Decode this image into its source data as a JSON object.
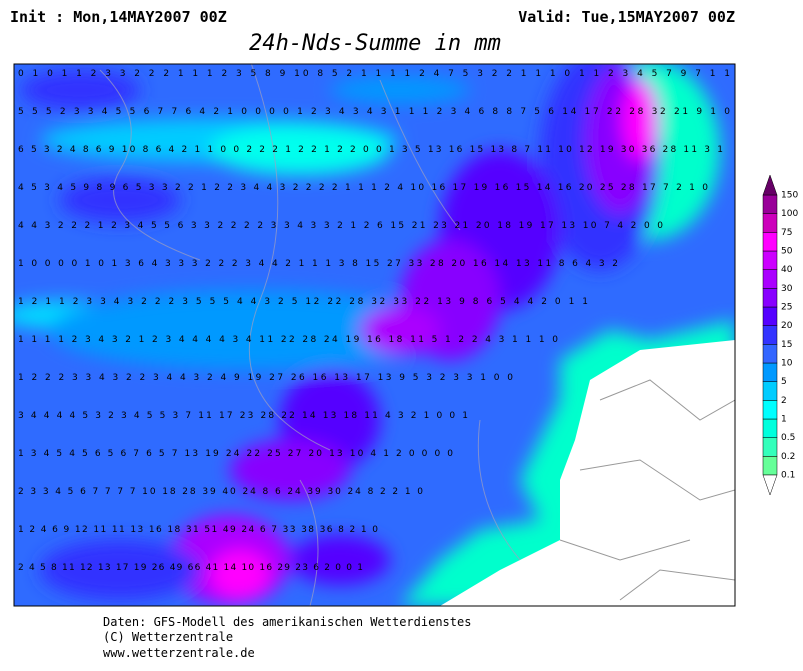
{
  "header": {
    "init": "Init : Mon,14MAY2007 00Z",
    "valid": "Valid: Tue,15MAY2007 00Z",
    "title": "24h-Nds-Summe in mm"
  },
  "map": {
    "rows": [
      "0 1 0 1 1 2 3 3 2 2 2 1 1 1 2 3 5 8 9 10 8 5 2 1 1 1 1 2 4 7 5 3 2 2 1 1 1 0 1 1 2 3 4 5 7 9 7 1 1",
      "5 5 5 2 3 3 4 5 5 6 7 7 6 4 2 1 0 0 0 0 1 2 3 4 3 4 3 1 1 1 2 3 4 6 8 8 7 5 6 14 17 22 28 32 21 9 1 0",
      "6 5 3 2 4 8 6 9 10 8 6 4 2 1 1 0 0 2 2 2 1 2 2 1 2 2 0 0 1 3 5 13 16 15 13 8 7 11 10 12 19 30 36 28 11 3 1",
      "4 5 3 4 5 9 8 9 6 5 3 3 2 2 1 2 2 3 4 4 3 2 2 2 2 1 1 1 2 4 10 16 17 19 16 15 14 16 20 25 28 17 7 2 1 0",
      "4 4 3 2 2 2 1 2 3 4 5 5 6 3 3 2 2 2 2 3 3 4 3 3 2 1 2 6 15 21 23 21 20 18 19 17 13 10 7 4 2 0 0",
      "1 0 0 0 0 1 0 1 3 6 4 3 3 3 2 2 2 3 4 4 2 1 1 1 3 8 15 27 33 28 20 16 14 13 11 8 6 4 3 2",
      "1 2 1 1 2 3 3 4 3 2 2 2 3 5 5 5 4 4 3 2 5 12 22 28 32 33 22 13 9 8 6 5 4 4 2 0 1 1",
      "1 1 1 1 2 3 4 3 2 1 2 3 4 4 4 4 3 4 11 22 28 24 19 16 18 11 5 1 2 2 4 3 1 1 1 0",
      "1 2 2 2 3 3 4 3 2 2 3 4 4 3 2 4 9 19 27 26 16 13 17 13 9 5 3 2 3 3 1 0 0",
      "3 4 4 4 4 5 3 2 3 4 5 5 3 7 11 17 23 28 22 14 13 18 11 4 3 2 1 0 0 1",
      "1 3 4 5 4 5 6 5 6 7 6 5 7 13 19 24 22 25 27 20 13 10 4 1 2 0 0 0 0",
      "2 3 3 4 5 6 7 7 7 7 10 18 28 39 40 24 8 6 24 39 30 24 8 2 2 1 0",
      "1 2 4 6 9 12 11 11 13 16 18 31 51 49 24 6 7 33 38 36 8 2 1 0",
      "2 4 5 8 11 12 13 17 19 26 49 66 41 14 10 16 29 23 6 2 0 0 1"
    ]
  },
  "legend": [
    {
      "label": "0.1",
      "color": "#66ff99"
    },
    {
      "label": "0.2",
      "color": "#33ffbb"
    },
    {
      "label": "0.5",
      "color": "#00ffdd"
    },
    {
      "label": "1",
      "color": "#00ffff"
    },
    {
      "label": "2",
      "color": "#00ccff"
    },
    {
      "label": "5",
      "color": "#0099ff"
    },
    {
      "label": "10",
      "color": "#3366ff"
    },
    {
      "label": "15",
      "color": "#3333ff"
    },
    {
      "label": "20",
      "color": "#5500ff"
    },
    {
      "label": "25",
      "color": "#8800ff"
    },
    {
      "label": "30",
      "color": "#aa00ff"
    },
    {
      "label": "40",
      "color": "#cc00ff"
    },
    {
      "label": "50",
      "color": "#ff00ff"
    },
    {
      "label": "75",
      "color": "#cc00bb"
    },
    {
      "label": "100",
      "color": "#990099"
    },
    {
      "label": "150",
      "color": "#660066"
    }
  ],
  "footer": [
    "Daten: GFS-Modell des amerikanischen Wetterdienstes",
    "(C) Wetterzentrale",
    "www.wetterzentrale.de"
  ]
}
